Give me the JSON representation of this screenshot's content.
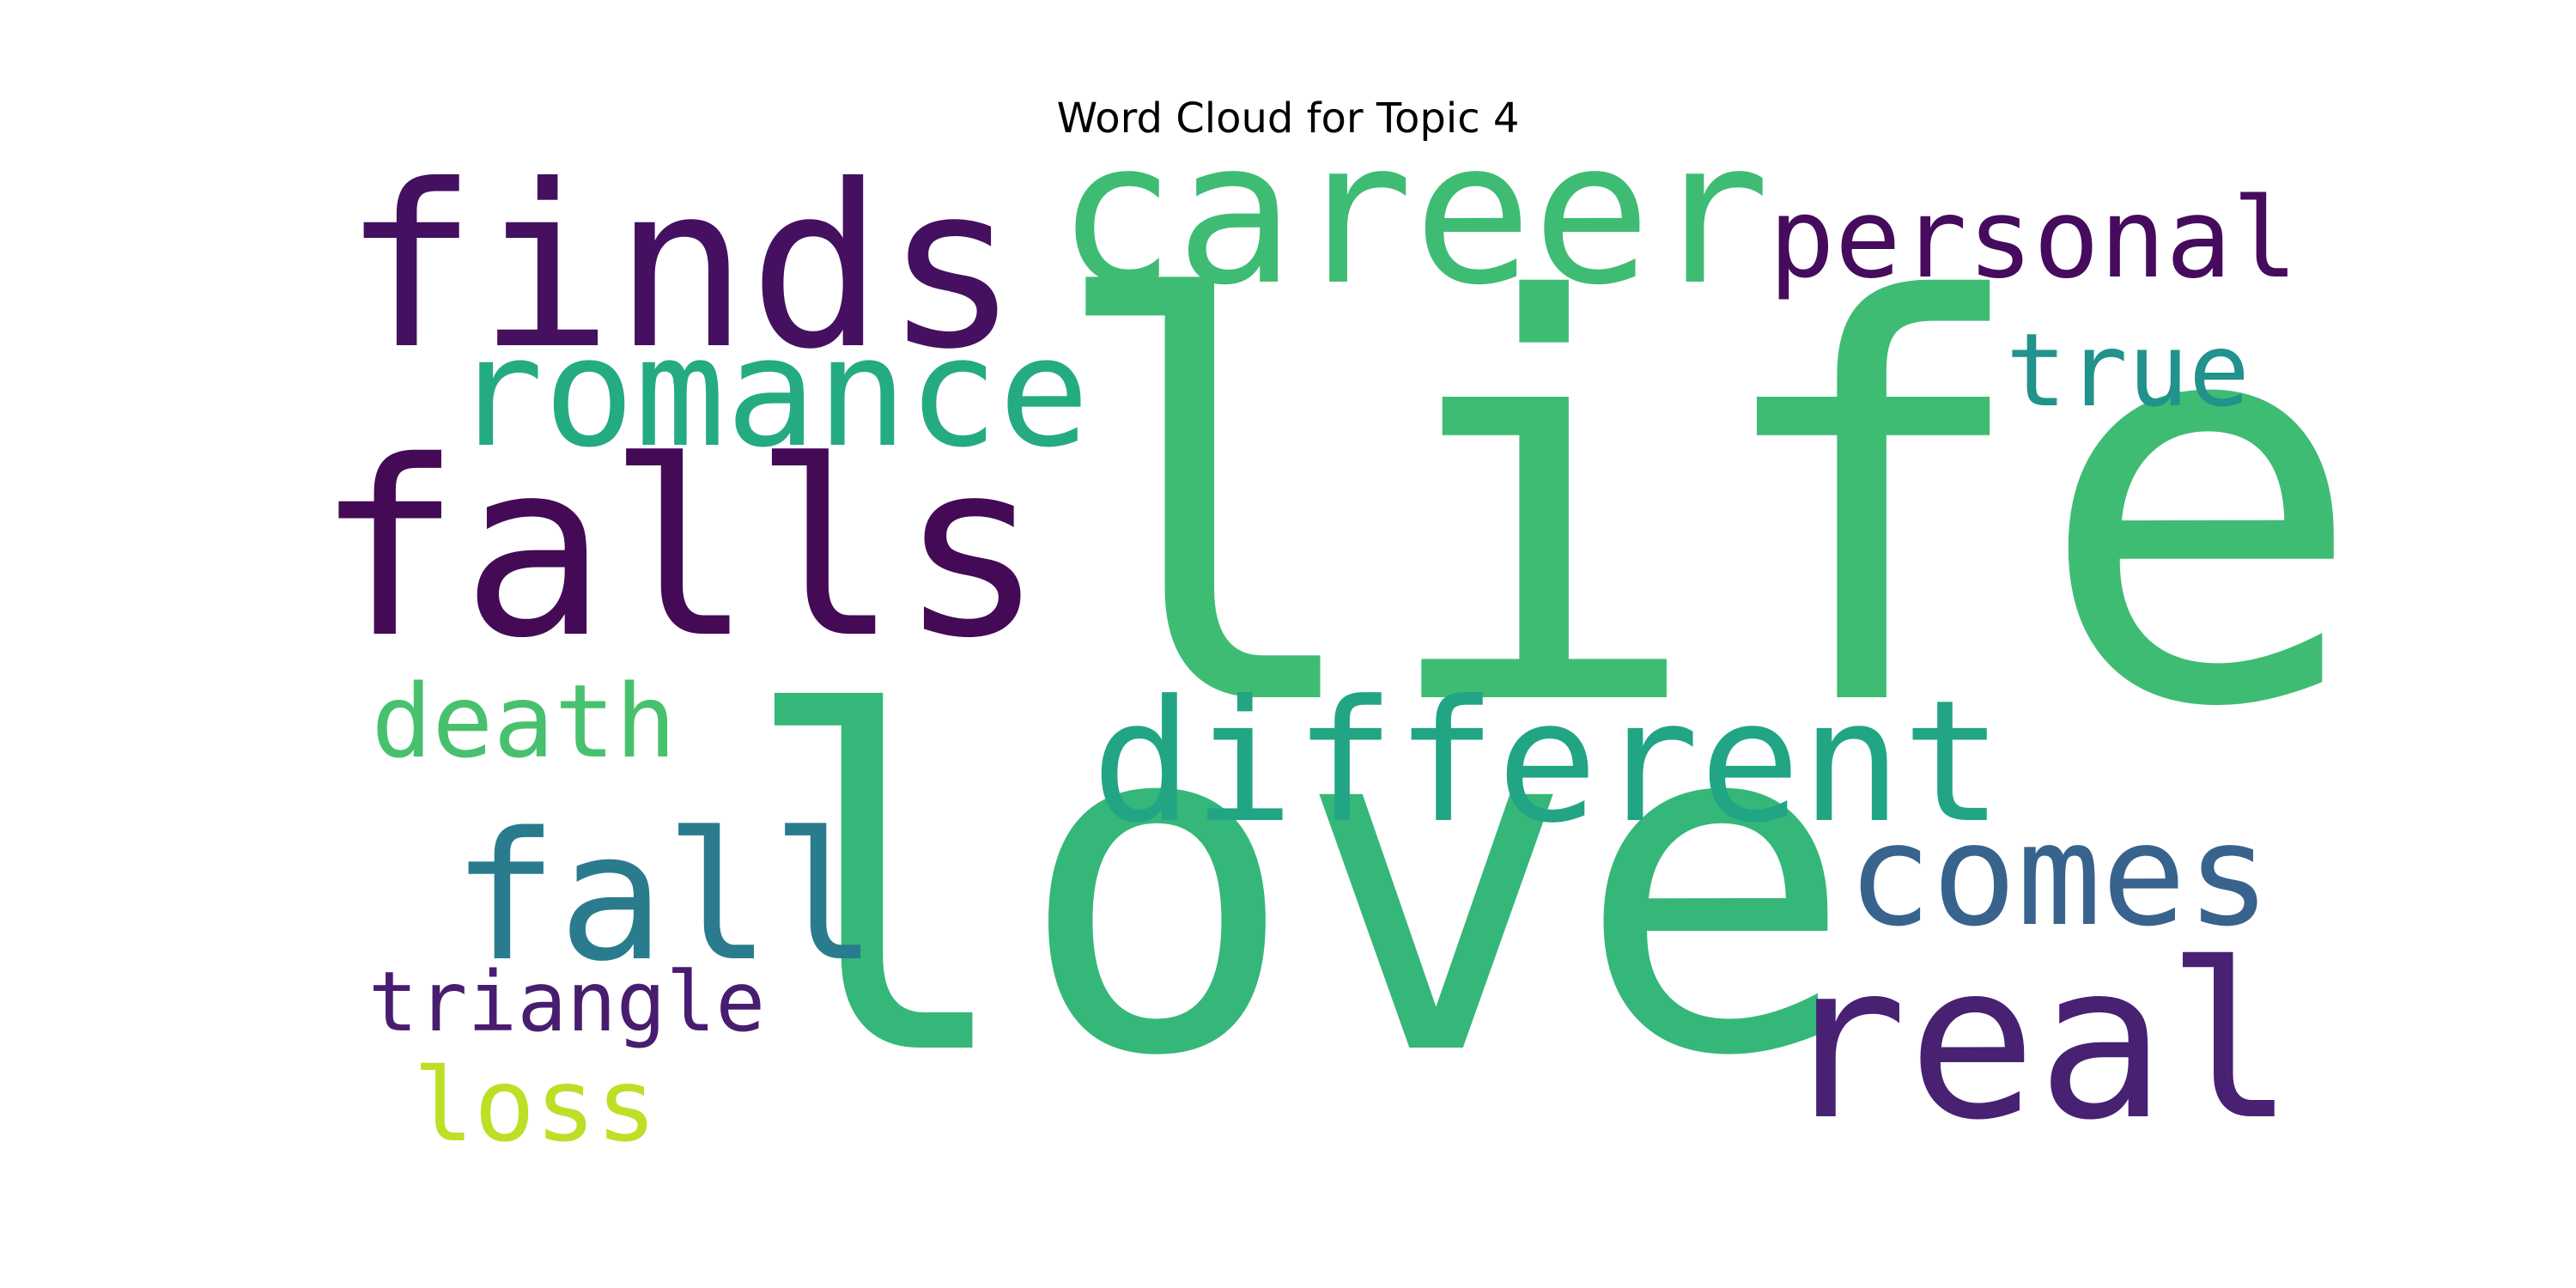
{
  "figure": {
    "title": "Word Cloud for Topic 4"
  },
  "word_cloud": {
    "words": [
      {
        "text": "life",
        "color": "#3fbc73"
      },
      {
        "text": "love",
        "color": "#35b779"
      },
      {
        "text": "falls",
        "color": "#440a56"
      },
      {
        "text": "finds",
        "color": "#45105f"
      },
      {
        "text": "career",
        "color": "#3fbc73"
      },
      {
        "text": "real",
        "color": "#482173"
      },
      {
        "text": "different",
        "color": "#21a585"
      },
      {
        "text": "romance",
        "color": "#25ab82"
      },
      {
        "text": "fall",
        "color": "#2a7b8e"
      },
      {
        "text": "comes",
        "color": "#38638d"
      },
      {
        "text": "personal",
        "color": "#460b5d"
      },
      {
        "text": "death",
        "color": "#48c16e"
      },
      {
        "text": "true",
        "color": "#21928c"
      },
      {
        "text": "triangle",
        "color": "#481d6f"
      },
      {
        "text": "loss",
        "color": "#bddf26"
      }
    ]
  }
}
